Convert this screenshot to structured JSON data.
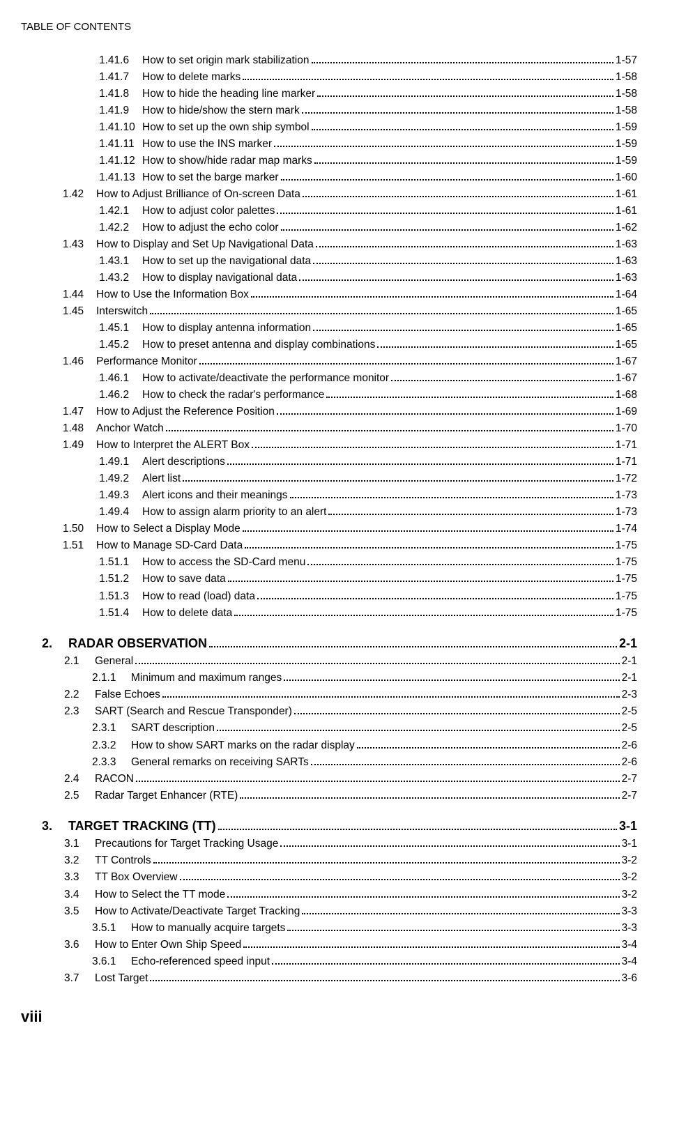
{
  "header": "TABLE OF CONTENTS",
  "footer": "viii",
  "entries": [
    {
      "l": "b",
      "n": "1.41.6",
      "t": "How to set origin mark stabilization",
      "p": "1-57",
      "nc": "wide-num"
    },
    {
      "l": "b",
      "n": "1.41.7",
      "t": "How to delete marks",
      "p": "1-58",
      "nc": "wide-num"
    },
    {
      "l": "b",
      "n": "1.41.8",
      "t": "How to hide the heading line marker",
      "p": "1-58",
      "nc": "wide-num"
    },
    {
      "l": "b",
      "n": "1.41.9",
      "t": "How to hide/show the stern mark",
      "p": "1-58",
      "nc": "wide-num"
    },
    {
      "l": "b",
      "n": "1.41.10",
      "t": "How to set up the own ship symbol",
      "p": "1-59",
      "nc": "wide-num"
    },
    {
      "l": "b",
      "n": "1.41.11",
      "t": "How to use the INS marker",
      "p": "1-59",
      "nc": "wide-num"
    },
    {
      "l": "b",
      "n": "1.41.12",
      "t": "How to show/hide radar map marks",
      "p": "1-59",
      "nc": "wide-num"
    },
    {
      "l": "b",
      "n": "1.41.13",
      "t": "How to set the barge marker",
      "p": "1-60",
      "nc": "wide-num"
    },
    {
      "l": "a",
      "n": "1.42",
      "t": "How to Adjust Brilliance of On-screen Data",
      "p": "1-61",
      "nc": "narrow-num"
    },
    {
      "l": "b",
      "n": "1.42.1",
      "t": "How to adjust color palettes",
      "p": "1-61",
      "nc": "wide-num"
    },
    {
      "l": "b",
      "n": "1.42.2",
      "t": "How to adjust the echo color",
      "p": "1-62",
      "nc": "wide-num"
    },
    {
      "l": "a",
      "n": "1.43",
      "t": "How to Display and Set Up Navigational Data",
      "p": "1-63",
      "nc": "narrow-num"
    },
    {
      "l": "b",
      "n": "1.43.1",
      "t": "How to set up the navigational data",
      "p": "1-63",
      "nc": "wide-num"
    },
    {
      "l": "b",
      "n": "1.43.2",
      "t": "How to display navigational data",
      "p": "1-63",
      "nc": "wide-num"
    },
    {
      "l": "a",
      "n": "1.44",
      "t": "How to Use the Information Box",
      "p": "1-64",
      "nc": "narrow-num"
    },
    {
      "l": "a",
      "n": "1.45",
      "t": "Interswitch",
      "p": "1-65",
      "nc": "narrow-num"
    },
    {
      "l": "b",
      "n": "1.45.1",
      "t": "How to display antenna information",
      "p": "1-65",
      "nc": "wide-num"
    },
    {
      "l": "b",
      "n": "1.45.2",
      "t": "How to preset antenna and display combinations",
      "p": "1-65",
      "nc": "wide-num"
    },
    {
      "l": "a",
      "n": "1.46",
      "t": "Performance Monitor",
      "p": "1-67",
      "nc": "narrow-num"
    },
    {
      "l": "b",
      "n": "1.46.1",
      "t": "How to activate/deactivate the performance monitor",
      "p": "1-67",
      "nc": "wide-num"
    },
    {
      "l": "b",
      "n": "1.46.2",
      "t": "How to check the radar's performance",
      "p": "1-68",
      "nc": "wide-num"
    },
    {
      "l": "a",
      "n": "1.47",
      "t": "How to Adjust the Reference Position",
      "p": "1-69",
      "nc": "narrow-num"
    },
    {
      "l": "a",
      "n": "1.48",
      "t": "Anchor Watch",
      "p": "1-70",
      "nc": "narrow-num"
    },
    {
      "l": "a",
      "n": "1.49",
      "t": "How to Interpret the ALERT Box",
      "p": "1-71",
      "nc": "narrow-num"
    },
    {
      "l": "b",
      "n": "1.49.1",
      "t": "Alert descriptions",
      "p": "1-71",
      "nc": "wide-num"
    },
    {
      "l": "b",
      "n": "1.49.2",
      "t": "Alert list",
      "p": "1-72",
      "nc": "wide-num"
    },
    {
      "l": "b",
      "n": "1.49.3",
      "t": "Alert icons and their meanings",
      "p": "1-73",
      "nc": "wide-num"
    },
    {
      "l": "b",
      "n": "1.49.4",
      "t": "How to assign alarm priority to an alert",
      "p": "1-73",
      "nc": "wide-num"
    },
    {
      "l": "a",
      "n": "1.50",
      "t": "How to Select a Display Mode",
      "p": "1-74",
      "nc": "narrow-num"
    },
    {
      "l": "a",
      "n": "1.51",
      "t": "How to Manage SD-Card Data",
      "p": "1-75",
      "nc": "narrow-num"
    },
    {
      "l": "b",
      "n": "1.51.1",
      "t": "How to access the SD-Card menu",
      "p": "1-75",
      "nc": "wide-num"
    },
    {
      "l": "b",
      "n": "1.51.2",
      "t": "How to save data",
      "p": "1-75",
      "nc": "wide-num"
    },
    {
      "l": "b",
      "n": "1.51.3",
      "t": "How to read (load) data",
      "p": "1-75",
      "nc": "wide-num"
    },
    {
      "l": "b",
      "n": "1.51.4",
      "t": "How to delete data",
      "p": "1-75",
      "nc": "wide-num"
    },
    {
      "l": "d",
      "n": "2.",
      "t": "RADAR OBSERVATION",
      "p": "2-1",
      "nc": "ch-num",
      "chapter": true
    },
    {
      "l": "e",
      "n": "2.1",
      "t": "General",
      "p": "2-1",
      "nc": "s2-num"
    },
    {
      "l": "c",
      "n": "2.1.1",
      "t": "Minimum and maximum ranges",
      "p": "2-1",
      "nc": "s3-num"
    },
    {
      "l": "e",
      "n": "2.2",
      "t": "False Echoes",
      "p": "2-3",
      "nc": "s2-num"
    },
    {
      "l": "e",
      "n": "2.3",
      "t": "SART (Search and Rescue Transponder)",
      "p": "2-5",
      "nc": "s2-num"
    },
    {
      "l": "c",
      "n": "2.3.1",
      "t": "SART description",
      "p": "2-5",
      "nc": "s3-num"
    },
    {
      "l": "c",
      "n": "2.3.2",
      "t": "How to show SART marks on the radar display",
      "p": "2-6",
      "nc": "s3-num"
    },
    {
      "l": "c",
      "n": "2.3.3",
      "t": "General remarks on receiving SARTs",
      "p": "2-6",
      "nc": "s3-num"
    },
    {
      "l": "e",
      "n": "2.4",
      "t": "RACON",
      "p": "2-7",
      "nc": "s2-num"
    },
    {
      "l": "e",
      "n": "2.5",
      "t": "Radar Target Enhancer (RTE)",
      "p": "2-7",
      "nc": "s2-num"
    },
    {
      "l": "d",
      "n": "3.",
      "t": "TARGET TRACKING (TT)",
      "p": "3-1",
      "nc": "ch-num",
      "chapter": true
    },
    {
      "l": "e",
      "n": "3.1",
      "t": "Precautions for Target Tracking Usage",
      "p": "3-1",
      "nc": "s2-num"
    },
    {
      "l": "e",
      "n": "3.2",
      "t": "TT Controls",
      "p": "3-2",
      "nc": "s2-num"
    },
    {
      "l": "e",
      "n": "3.3",
      "t": "TT Box Overview",
      "p": "3-2",
      "nc": "s2-num"
    },
    {
      "l": "e",
      "n": "3.4",
      "t": "How to Select the TT mode",
      "p": "3-2",
      "nc": "s2-num"
    },
    {
      "l": "e",
      "n": "3.5",
      "t": "How to Activate/Deactivate Target Tracking",
      "p": "3-3",
      "nc": "s2-num"
    },
    {
      "l": "c",
      "n": "3.5.1",
      "t": "How to manually acquire targets",
      "p": "3-3",
      "nc": "s3-num"
    },
    {
      "l": "e",
      "n": "3.6",
      "t": "How to Enter Own Ship Speed",
      "p": "3-4",
      "nc": "s2-num"
    },
    {
      "l": "c",
      "n": "3.6.1",
      "t": "Echo-referenced speed input",
      "p": "3-4",
      "nc": "s3-num"
    },
    {
      "l": "e",
      "n": "3.7",
      "t": "Lost Target",
      "p": "3-6",
      "nc": "s2-num"
    }
  ]
}
